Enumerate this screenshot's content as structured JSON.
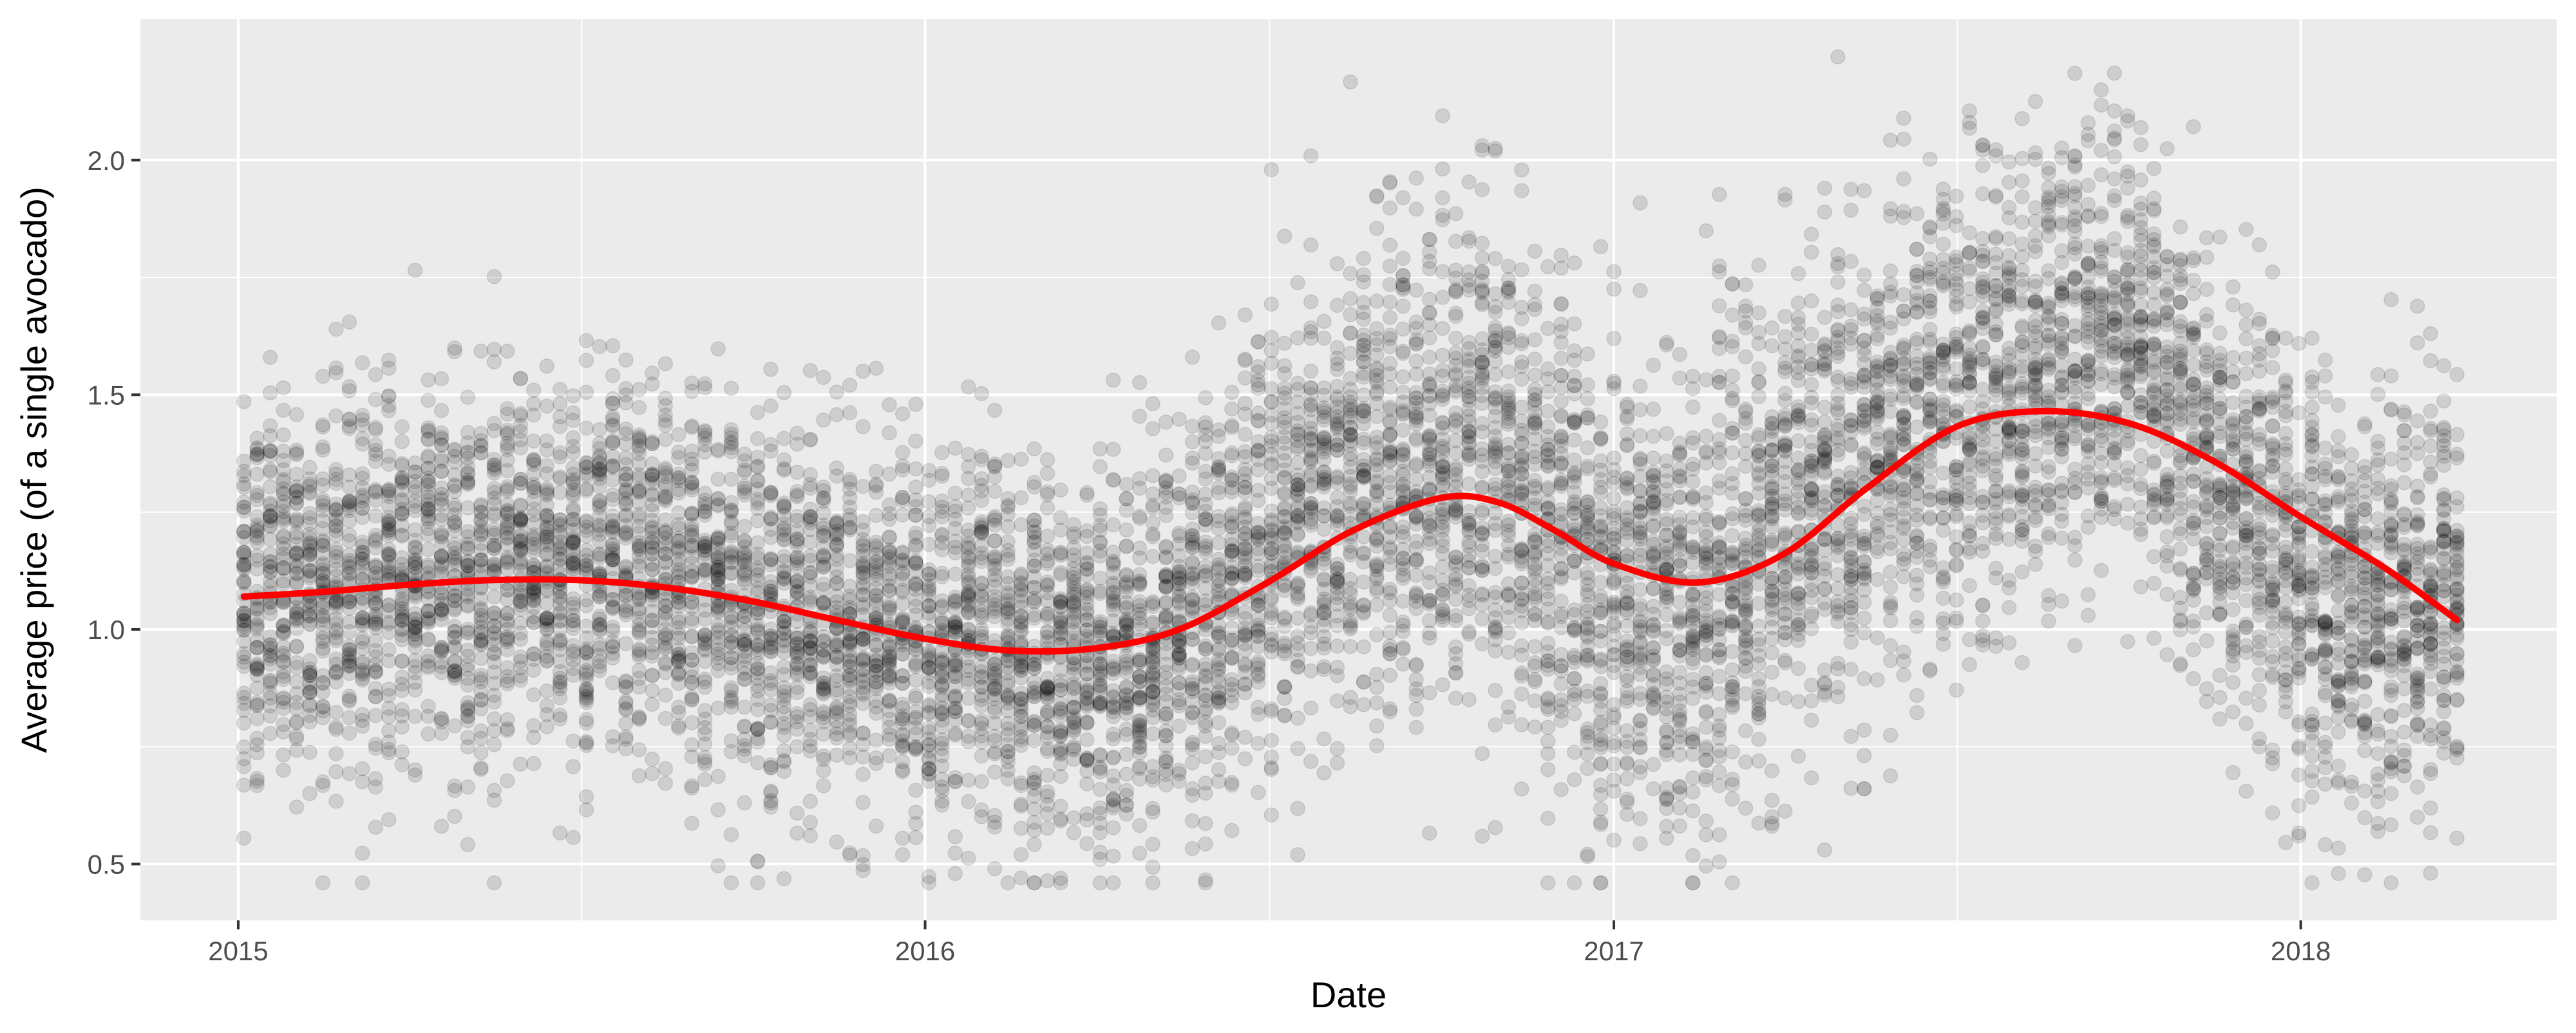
{
  "chart_data": {
    "type": "scatter",
    "title": "",
    "xlabel": "Date",
    "ylabel": "Average price (of a single avocado)",
    "xlim": [
      "2014-11-10",
      "2018-05-17"
    ],
    "ylim": [
      0.38,
      2.3
    ],
    "x_ticks": [
      {
        "date": "2015-01-01",
        "label": "2015"
      },
      {
        "date": "2016-01-01",
        "label": "2016"
      },
      {
        "date": "2017-01-01",
        "label": "2017"
      },
      {
        "date": "2018-01-01",
        "label": "2018"
      }
    ],
    "y_ticks": [
      {
        "value": 0.5,
        "label": "0.5"
      },
      {
        "value": 1.0,
        "label": "1.0"
      },
      {
        "value": 1.5,
        "label": "1.5"
      },
      {
        "value": 2.0,
        "label": "2.0"
      }
    ],
    "grid": true,
    "background": "#EBEBEB",
    "point_color": "#000000",
    "point_alpha": 0.12,
    "smooth_color": "#FF0000",
    "series": [
      {
        "type": "scatter-cloud",
        "points_per_week": 54,
        "x_range": [
          "2015-01-04",
          "2018-03-25"
        ],
        "center": [
          [
            "2015-01-04",
            1.08
          ],
          [
            "2015-02-01",
            1.08
          ],
          [
            "2015-03-01",
            1.1
          ],
          [
            "2015-04-01",
            1.11
          ],
          [
            "2015-05-01",
            1.11
          ],
          [
            "2015-06-01",
            1.13
          ],
          [
            "2015-07-01",
            1.14
          ],
          [
            "2015-08-01",
            1.13
          ],
          [
            "2015-09-01",
            1.1
          ],
          [
            "2015-10-01",
            1.06
          ],
          [
            "2015-11-01",
            1.02
          ],
          [
            "2015-12-01",
            0.99
          ],
          [
            "2016-01-01",
            0.98
          ],
          [
            "2016-02-01",
            0.96
          ],
          [
            "2016-03-01",
            0.94
          ],
          [
            "2016-04-01",
            0.95
          ],
          [
            "2016-05-01",
            0.97
          ],
          [
            "2016-06-01",
            1.06
          ],
          [
            "2016-07-01",
            1.17
          ],
          [
            "2016-08-01",
            1.25
          ],
          [
            "2016-09-01",
            1.33
          ],
          [
            "2016-10-01",
            1.4
          ],
          [
            "2016-11-01",
            1.36
          ],
          [
            "2016-12-01",
            1.2
          ],
          [
            "2017-01-01",
            1.08
          ],
          [
            "2017-02-01",
            1.02
          ],
          [
            "2017-03-01",
            1.12
          ],
          [
            "2017-04-01",
            1.22
          ],
          [
            "2017-05-01",
            1.32
          ],
          [
            "2017-06-01",
            1.4
          ],
          [
            "2017-07-01",
            1.46
          ],
          [
            "2017-08-01",
            1.53
          ],
          [
            "2017-09-01",
            1.6
          ],
          [
            "2017-10-01",
            1.65
          ],
          [
            "2017-11-01",
            1.4
          ],
          [
            "2017-12-01",
            1.2
          ],
          [
            "2018-01-01",
            1.12
          ],
          [
            "2018-02-01",
            1.05
          ],
          [
            "2018-03-01",
            1.08
          ],
          [
            "2018-03-25",
            1.08
          ]
        ],
        "spread": [
          [
            "2015-01-04",
            0.2
          ],
          [
            "2015-07-01",
            0.2
          ],
          [
            "2016-01-01",
            0.19
          ],
          [
            "2016-06-01",
            0.21
          ],
          [
            "2016-10-01",
            0.27
          ],
          [
            "2017-01-01",
            0.26
          ],
          [
            "2017-06-01",
            0.25
          ],
          [
            "2017-10-01",
            0.23
          ],
          [
            "2018-01-01",
            0.23
          ],
          [
            "2018-03-25",
            0.22
          ]
        ]
      },
      {
        "type": "smooth-line",
        "points": [
          [
            "2015-01-04",
            1.07
          ],
          [
            "2015-02-15",
            1.08
          ],
          [
            "2015-04-01",
            1.095
          ],
          [
            "2015-05-15",
            1.105
          ],
          [
            "2015-07-01",
            1.105
          ],
          [
            "2015-08-15",
            1.09
          ],
          [
            "2015-10-01",
            1.06
          ],
          [
            "2015-11-15",
            1.02
          ],
          [
            "2016-01-01",
            0.98
          ],
          [
            "2016-02-15",
            0.955
          ],
          [
            "2016-04-01",
            0.96
          ],
          [
            "2016-05-15",
            1.0
          ],
          [
            "2016-07-01",
            1.1
          ],
          [
            "2016-08-15",
            1.21
          ],
          [
            "2016-10-01",
            1.28
          ],
          [
            "2016-11-01",
            1.27
          ],
          [
            "2016-12-01",
            1.21
          ],
          [
            "2017-01-01",
            1.14
          ],
          [
            "2017-02-15",
            1.1
          ],
          [
            "2017-04-01",
            1.16
          ],
          [
            "2017-05-15",
            1.3
          ],
          [
            "2017-07-01",
            1.43
          ],
          [
            "2017-08-15",
            1.465
          ],
          [
            "2017-10-01",
            1.44
          ],
          [
            "2017-11-15",
            1.36
          ],
          [
            "2018-01-01",
            1.24
          ],
          [
            "2018-02-15",
            1.13
          ],
          [
            "2018-03-25",
            1.02
          ]
        ]
      }
    ]
  }
}
